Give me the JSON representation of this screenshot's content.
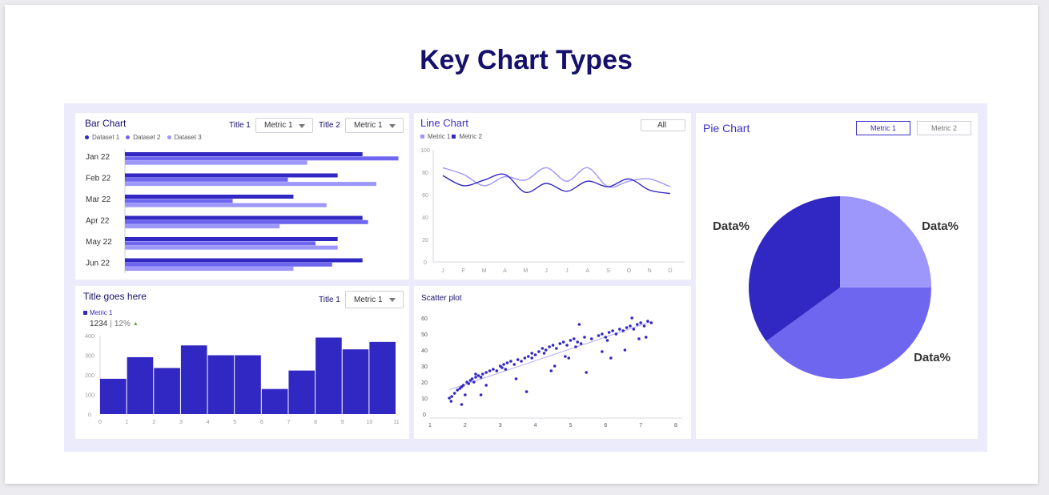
{
  "page": {
    "title": "Key Chart Types"
  },
  "colors": {
    "dark": "#3127c2",
    "mid": "#6f66ef",
    "light": "#9d96fb",
    "accent": "#6e9e2f"
  },
  "bar_card": {
    "title": "Bar Chart",
    "filter1_label": "Title 1",
    "filter1_value": "Metric 1",
    "filter2_label": "Title 2",
    "filter2_value": "Metric 1",
    "legend": [
      "Dataset 1",
      "Dataset 2",
      "Dataset 3"
    ]
  },
  "line_card": {
    "title": "Line Chart",
    "filter_value": "All",
    "legend": [
      "Metric 1",
      "Metric 2"
    ]
  },
  "hist_card": {
    "title": "Title goes here",
    "filter_label": "Title 1",
    "filter_value": "Metric 1",
    "legend": "Metric 1",
    "kpi_value": "1234",
    "kpi_sep": "|",
    "kpi_change": "12%",
    "kpi_arrow": "▲"
  },
  "scatter_card": {
    "title": "Scatter plot"
  },
  "pie_card": {
    "title": "Pie Chart",
    "buttons": [
      "Metric 1",
      "Metric 2"
    ]
  },
  "chart_data": [
    {
      "type": "bar",
      "orientation": "horizontal",
      "categories": [
        "Jan 22",
        "Feb 22",
        "Mar 22",
        "Apr 22",
        "May 22",
        "Jun 22"
      ],
      "series": [
        {
          "name": "Dataset 1",
          "values": [
            86,
            77,
            61,
            86,
            77,
            86
          ]
        },
        {
          "name": "Dataset 2",
          "values": [
            99,
            59,
            39,
            88,
            69,
            75
          ]
        },
        {
          "name": "Dataset 3",
          "values": [
            66,
            91,
            73,
            56,
            77,
            61
          ]
        }
      ],
      "xlim": [
        0,
        100
      ]
    },
    {
      "type": "line",
      "x": [
        "J",
        "F",
        "M",
        "A",
        "M",
        "J",
        "J",
        "A",
        "S",
        "O",
        "N",
        "D"
      ],
      "series": [
        {
          "name": "Metric 1",
          "values": [
            84,
            78,
            68,
            76,
            73,
            84,
            72,
            84,
            67,
            72,
            74,
            67
          ]
        },
        {
          "name": "Metric 2",
          "values": [
            77,
            68,
            73,
            78,
            62,
            70,
            63,
            72,
            67,
            74,
            64,
            61
          ]
        }
      ],
      "yticks": [
        0,
        20,
        40,
        60,
        80,
        100
      ],
      "ylim": [
        0,
        100
      ]
    },
    {
      "type": "bar",
      "subtype": "histogram",
      "series": [
        {
          "name": "Metric 1",
          "values": [
            180,
            290,
            235,
            350,
            300,
            300,
            128,
            222,
            390,
            330,
            368
          ]
        }
      ],
      "xticks": [
        0,
        1,
        2,
        3,
        4,
        5,
        6,
        7,
        8,
        9,
        10,
        11
      ],
      "yticks": [
        0,
        100,
        200,
        300,
        400
      ],
      "ylim": [
        0,
        400
      ]
    },
    {
      "type": "scatter",
      "x": [
        1.55,
        1.62,
        1.7,
        1.78,
        1.85,
        1.9,
        1.95,
        2.05,
        2.1,
        2.15,
        2.2,
        2.25,
        2.3,
        2.38,
        2.45,
        2.5,
        2.6,
        2.7,
        2.8,
        2.9,
        3.0,
        3.05,
        3.1,
        3.2,
        3.3,
        3.4,
        3.5,
        3.6,
        3.7,
        3.8,
        3.9,
        4.0,
        4.1,
        4.2,
        4.3,
        4.4,
        4.5,
        4.6,
        4.7,
        4.8,
        4.9,
        5.0,
        5.1,
        5.2,
        5.3,
        5.4,
        5.6,
        5.8,
        5.9,
        6.0,
        6.1,
        6.2,
        6.3,
        6.4,
        6.5,
        6.6,
        6.7,
        6.8,
        6.9,
        7.0,
        7.1,
        7.2,
        7.3,
        1.6,
        2.0,
        2.3,
        2.6,
        3.15,
        3.45,
        3.9,
        4.25,
        4.55,
        4.85,
        5.15,
        5.45,
        5.9,
        6.15,
        6.55,
        6.95,
        7.15,
        1.9,
        2.45,
        3.75,
        4.45,
        4.95,
        5.25,
        6.05,
        6.75
      ],
      "y": [
        10,
        11,
        13,
        15,
        16,
        17,
        18,
        20,
        19,
        21,
        22,
        20,
        23,
        24,
        23,
        25,
        26,
        27,
        28,
        27,
        30,
        29,
        31,
        32,
        33,
        31,
        34,
        33,
        35,
        36,
        38,
        37,
        39,
        41,
        40,
        42,
        43,
        41,
        44,
        45,
        43,
        46,
        47,
        45,
        44,
        48,
        47,
        49,
        50,
        48,
        51,
        52,
        50,
        53,
        52,
        54,
        55,
        53,
        56,
        57,
        55,
        58,
        57,
        8,
        12,
        25,
        18,
        28,
        22,
        35,
        38,
        30,
        36,
        42,
        26,
        39,
        35,
        40,
        47,
        48,
        6,
        12,
        14,
        27,
        35,
        56,
        46,
        60
      ],
      "xticks": [
        1,
        2,
        3,
        4,
        5,
        6,
        7,
        8
      ],
      "yticks": [
        0,
        10,
        20,
        30,
        40,
        50,
        60
      ],
      "xlim": [
        1,
        8
      ],
      "ylim": [
        0,
        60
      ]
    },
    {
      "type": "pie",
      "labels": [
        "Data%",
        "Data%",
        "Data%"
      ],
      "values": [
        25,
        40,
        35
      ]
    }
  ]
}
